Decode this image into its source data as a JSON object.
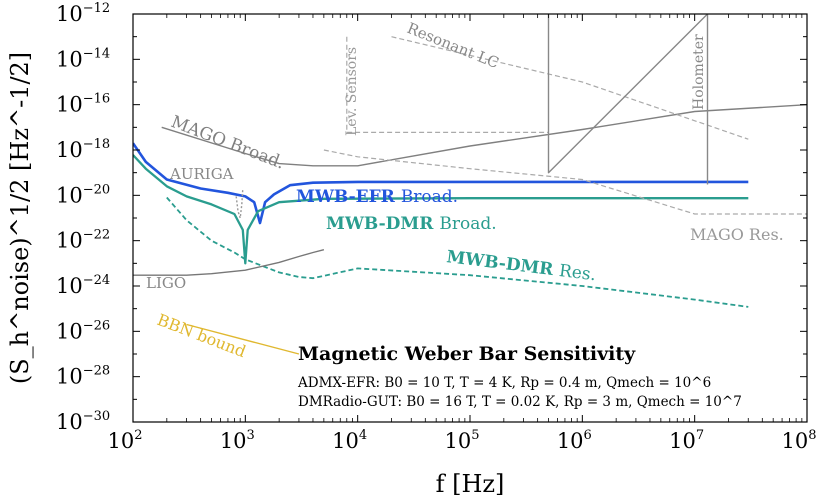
{
  "chart_data": {
    "type": "line",
    "title": "",
    "xlabel": "f [Hz]",
    "ylabel": "(S_h^noise)^1/2 [Hz^-1/2]",
    "x_scale": "log",
    "y_scale": "log",
    "xlim": [
      100,
      100000000
    ],
    "ylim": [
      1e-30,
      1e-12
    ],
    "x_ticks": [
      {
        "base": "10",
        "exp": "2",
        "value": 100
      },
      {
        "base": "10",
        "exp": "3",
        "value": 1000
      },
      {
        "base": "10",
        "exp": "4",
        "value": 10000
      },
      {
        "base": "10",
        "exp": "5",
        "value": 100000
      },
      {
        "base": "10",
        "exp": "6",
        "value": 1000000
      },
      {
        "base": "10",
        "exp": "7",
        "value": 10000000
      },
      {
        "base": "10",
        "exp": "8",
        "value": 100000000
      }
    ],
    "y_ticks": [
      {
        "base": "10",
        "exp": "−12",
        "value": 1e-12
      },
      {
        "base": "10",
        "exp": "−14",
        "value": 1e-14
      },
      {
        "base": "10",
        "exp": "−16",
        "value": 1e-16
      },
      {
        "base": "10",
        "exp": "−18",
        "value": 1e-18
      },
      {
        "base": "10",
        "exp": "−20",
        "value": 1e-20
      },
      {
        "base": "10",
        "exp": "−22",
        "value": 1e-22
      },
      {
        "base": "10",
        "exp": "−24",
        "value": 1e-24
      },
      {
        "base": "10",
        "exp": "−26",
        "value": 1e-26
      },
      {
        "base": "10",
        "exp": "−28",
        "value": 1e-28
      },
      {
        "base": "10",
        "exp": "−30",
        "value": 1e-30
      }
    ],
    "series": [
      {
        "name": "MWB-EFR Broad.",
        "color": "#2255dd",
        "style": "solid",
        "width": 2.6,
        "points": [
          [
            100,
            2e-18
          ],
          [
            130,
            3e-19
          ],
          [
            200,
            5e-20
          ],
          [
            400,
            2e-20
          ],
          [
            700,
            1.3e-20
          ],
          [
            1000,
            9e-21
          ],
          [
            1200,
            5e-21
          ],
          [
            1350,
            6e-22
          ],
          [
            1500,
            5e-21
          ],
          [
            1800,
            1.1e-20
          ],
          [
            2500,
            2.8e-20
          ],
          [
            4000,
            3.6e-20
          ],
          [
            10000,
            3.9e-20
          ],
          [
            30000000,
            3.9e-20
          ]
        ]
      },
      {
        "name": "MWB-DMR Broad.",
        "color": "#2a9d8f",
        "style": "solid",
        "width": 2.3,
        "points": [
          [
            100,
            6e-19
          ],
          [
            130,
            1.5e-19
          ],
          [
            200,
            2.5e-20
          ],
          [
            300,
            9e-21
          ],
          [
            500,
            4e-21
          ],
          [
            800,
            1.5e-21
          ],
          [
            950,
            3e-22
          ],
          [
            1000,
            1e-23
          ],
          [
            1050,
            3e-22
          ],
          [
            1300,
            2e-21
          ],
          [
            2000,
            5e-21
          ],
          [
            5000,
            7e-21
          ],
          [
            100000,
            7.5e-21
          ],
          [
            30000000,
            7.5e-21
          ]
        ]
      },
      {
        "name": "MWB-DMR Res.",
        "color": "#2a9d8f",
        "style": "dashed",
        "width": 1.8,
        "points": [
          [
            200,
            8e-21
          ],
          [
            300,
            8e-22
          ],
          [
            500,
            1e-22
          ],
          [
            800,
            3e-23
          ],
          [
            1000,
            1.5e-23
          ],
          [
            2000,
            4e-24
          ],
          [
            3000,
            2.5e-24
          ],
          [
            4000,
            2.2e-24
          ],
          [
            10000,
            6e-24
          ],
          [
            100000,
            3e-24
          ],
          [
            1000000,
            1e-24
          ],
          [
            10000000,
            2.5e-25
          ],
          [
            30000000,
            1.2e-25
          ]
        ]
      },
      {
        "name": "MAGO Broad.",
        "color": "#808080",
        "style": "solid",
        "width": 1.4,
        "points": [
          [
            180,
            1e-17
          ],
          [
            1000,
            7e-19
          ],
          [
            2000,
            2.5e-19
          ],
          [
            4000,
            2e-19
          ],
          [
            10000,
            2e-19
          ],
          [
            100000,
            1.5e-18
          ],
          [
            1000000,
            8e-18
          ],
          [
            10000000,
            5e-17
          ],
          [
            100000000,
            1e-16
          ]
        ]
      },
      {
        "name": "AURIGA",
        "color": "#999999",
        "style": "dotted",
        "width": 1.4,
        "points": [
          [
            830,
            9e-21
          ],
          [
            860,
            2e-21
          ],
          [
            900,
            1e-21
          ],
          [
            930,
            4e-21
          ],
          [
            950,
            2e-20
          ]
        ]
      },
      {
        "name": "LIGO",
        "color": "#777777",
        "style": "solid",
        "width": 1.4,
        "points": [
          [
            100,
            3e-24
          ],
          [
            300,
            3e-24
          ],
          [
            500,
            3.5e-24
          ],
          [
            1000,
            5e-24
          ],
          [
            2000,
            1.1e-23
          ],
          [
            3000,
            2e-23
          ],
          [
            4000,
            3e-23
          ],
          [
            5000,
            4e-23
          ]
        ]
      },
      {
        "name": "MAGO Res.",
        "color": "#aaaaaa",
        "style": "dashed",
        "width": 1.2,
        "points": [
          [
            5000,
            1e-18
          ],
          [
            10000,
            5e-19
          ],
          [
            100000,
            1.5e-19
          ],
          [
            1000000,
            5e-20
          ],
          [
            10000000,
            1.5e-21
          ],
          [
            100000000,
            1.5e-21
          ]
        ]
      },
      {
        "name": "Resonant LC",
        "color": "#aaaaaa",
        "style": "dashed",
        "width": 1.2,
        "points": [
          [
            20000,
            1e-13
          ],
          [
            1000000,
            1e-15
          ],
          [
            30000000,
            3e-18
          ]
        ]
      },
      {
        "name": "Lev. Sensors",
        "color": "#aaaaaa",
        "style": "dashed",
        "width": 1.2,
        "points": [
          [
            8000,
            1e-13
          ],
          [
            8000,
            6e-18
          ],
          [
            500000,
            6e-18
          ]
        ]
      },
      {
        "name": "Holometer",
        "color": "#888888",
        "style": "solid",
        "width": 1.4,
        "points": [
          [
            500000,
            1e-12
          ],
          [
            500000,
            1e-19
          ],
          [
            13000000,
            1e-12
          ],
          [
            13000000,
            3e-20
          ]
        ]
      },
      {
        "name": "BBN bound",
        "color": "#e0b830",
        "style": "solid",
        "width": 1.4,
        "points": [
          [
            300,
            2e-26
          ],
          [
            3000,
            1e-27
          ]
        ]
      }
    ],
    "labels": {
      "auriga": "AURIGA",
      "ligo": "LIGO",
      "mago_broad": "MAGO Broad.",
      "lev_sensors": "Lev. Sensors",
      "resonant_lc": "Resonant LC",
      "holometer": "Holometer",
      "mago_res": "MAGO Res.",
      "bbn": "BBN bound",
      "efr_bold": "MWB-EFR",
      "efr_rest": "Broad.",
      "dmr_broad_bold": "MWB-DMR",
      "dmr_broad_rest": "Broad.",
      "dmr_res_bold": "MWB-DMR",
      "dmr_res_rest": "Res."
    },
    "annotation": {
      "title": "Magnetic Weber Bar Sensitivity",
      "line1": "ADMX-EFR: B0 = 10 T, T = 4 K, Rp = 0.4 m, Qmech = 10^6",
      "line2": "DMRadio-GUT: B0 = 16 T, T = 0.02 K, Rp = 3 m, Qmech = 10^7"
    },
    "grid": false,
    "legend": "none (inline labels)"
  }
}
